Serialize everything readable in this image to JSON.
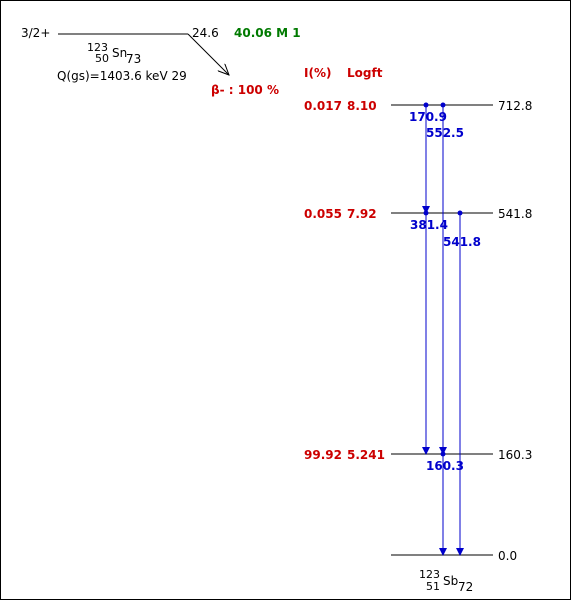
{
  "parent": {
    "spin": "3/2+",
    "energy": "24.6",
    "halflife": "40.06 M 1",
    "mass_number": "123",
    "atomic_number": "50",
    "symbol": "Sn",
    "neutron_number": "73",
    "q_value": "Q(gs)=1403.6 keV 29",
    "decay_mode": "β- : 100 %"
  },
  "columns": {
    "intensity": "I(%)",
    "logft": "Logft"
  },
  "levels": [
    {
      "energy": "712.8",
      "intensity": "0.017",
      "logft": "8.10"
    },
    {
      "energy": "541.8",
      "intensity": "0.055",
      "logft": "7.92"
    },
    {
      "energy": "160.3",
      "intensity": "99.92",
      "logft": "5.241"
    },
    {
      "energy": "0.0",
      "intensity": "",
      "logft": ""
    }
  ],
  "gammas": [
    {
      "energy": "170.9",
      "from": "712.8",
      "to": "541.8"
    },
    {
      "energy": "552.5",
      "from": "712.8",
      "to": "160.3"
    },
    {
      "energy": "381.4",
      "from": "541.8",
      "to": "160.3"
    },
    {
      "energy": "541.8",
      "from": "541.8",
      "to": "0.0"
    },
    {
      "energy": "160.3",
      "from": "160.3",
      "to": "0.0"
    }
  ],
  "daughter": {
    "mass_number": "123",
    "atomic_number": "51",
    "symbol": "Sb",
    "neutron_number": "72"
  },
  "colors": {
    "levels_text": "#cc0000",
    "gamma": "#0000cc",
    "halflife": "#007a00"
  }
}
